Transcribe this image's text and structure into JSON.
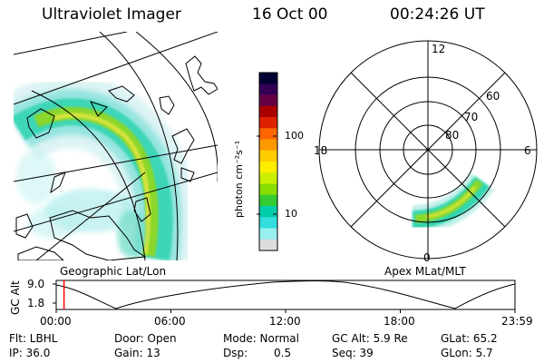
{
  "header": {
    "instrument": "Ultraviolet Imager",
    "date": "16 Oct 00",
    "time": "00:24:26 UT"
  },
  "colorbar": {
    "unit_label": "photon cm⁻²s⁻¹",
    "tick_labels": [
      "100",
      "10"
    ],
    "colors": [
      "#000033",
      "#330055",
      "#660044",
      "#aa0000",
      "#dd2200",
      "#ff6600",
      "#ff9900",
      "#ffcc00",
      "#ffee00",
      "#ccee00",
      "#88dd00",
      "#33cc33",
      "#00ccaa",
      "#33dddd",
      "#99eeee",
      "#dddddd"
    ]
  },
  "panels": {
    "left_caption": "Geographic Lat/Lon",
    "right_caption": "Apex MLat/MLT",
    "mlt_labels": {
      "top": "12",
      "left": "18",
      "right": "6",
      "bottom": "0"
    },
    "lat_labels": [
      "60",
      "70",
      "80"
    ]
  },
  "altitude_plot": {
    "ylabel": "GC Alt",
    "y_ticks": [
      "9.0",
      "1.8"
    ],
    "x_ticks": [
      "00:00",
      "06:00",
      "12:00",
      "18:00",
      "23:59"
    ],
    "current_time_fraction": 0.017
  },
  "status": {
    "filter": "Flt: LBHL",
    "ip": "IP: 36.0",
    "door": "Door: Open",
    "gain": "Gain: 13",
    "mode": "Mode: Normal",
    "dsp_label": "Dsp:",
    "dsp_value": "0.5",
    "gc_alt": "GC Alt: 5.9 Re",
    "seq": "Seq: 39",
    "glat": "GLat: 65.2",
    "glon": "GLon: 5.7"
  }
}
